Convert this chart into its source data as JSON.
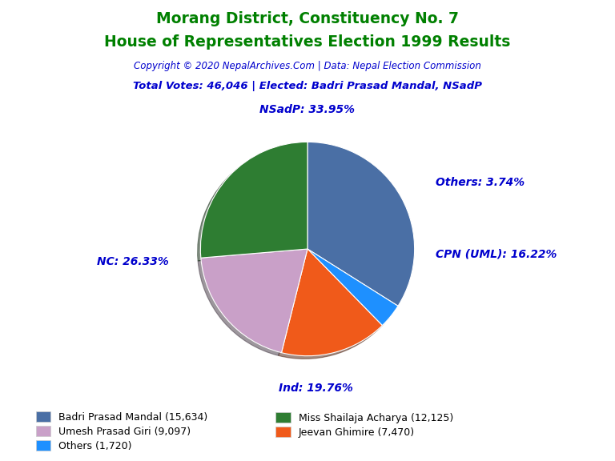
{
  "title_line1": "Morang District, Constituency No. 7",
  "title_line2": "House of Representatives Election 1999 Results",
  "title_color": "#008000",
  "copyright_text": "Copyright © 2020 NepalArchives.Com | Data: Nepal Election Commission",
  "copyright_color": "#0000cd",
  "subtitle_text": "Total Votes: 46,046 | Elected: Badri Prasad Mandal, NSadP",
  "subtitle_color": "#0000cd",
  "slices": [
    {
      "label": "NSadP",
      "value": 15634,
      "pct": "33.95",
      "color": "#4a6fa5"
    },
    {
      "label": "Others",
      "value": 1720,
      "pct": "3.74",
      "color": "#1e90ff"
    },
    {
      "label": "CPN (UML)",
      "value": 7470,
      "pct": "16.22",
      "color": "#f05a1a"
    },
    {
      "label": "Ind",
      "value": 9097,
      "pct": "19.76",
      "color": "#c9a0c8"
    },
    {
      "label": "NC",
      "value": 12125,
      "pct": "26.33",
      "color": "#2e7d32"
    }
  ],
  "legend_entries": [
    {
      "label": "Badri Prasad Mandal (15,634)",
      "color": "#4a6fa5"
    },
    {
      "label": "Miss Shailaja Acharya (12,125)",
      "color": "#2e7d32"
    },
    {
      "label": "Umesh Prasad Giri (9,097)",
      "color": "#c9a0c8"
    },
    {
      "label": "Jeevan Ghimire (7,470)",
      "color": "#f05a1a"
    },
    {
      "label": "Others (1,720)",
      "color": "#1e90ff"
    }
  ],
  "label_color": "#0000cd",
  "label_fontsize": 10,
  "background_color": "#ffffff"
}
